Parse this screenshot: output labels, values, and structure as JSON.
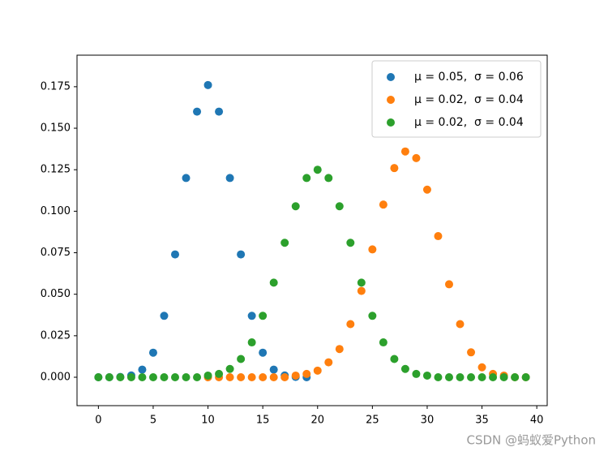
{
  "chart_data": {
    "type": "scatter",
    "xlim": [
      -1.95,
      40.95
    ],
    "ylim": [
      -0.0171,
      0.194
    ],
    "xticks": [
      0,
      5,
      10,
      15,
      20,
      25,
      30,
      35,
      40
    ],
    "yticks": [
      {
        "value": 0,
        "label": "0.000"
      },
      {
        "value": 0.025,
        "label": "0.025"
      },
      {
        "value": 0.05,
        "label": "0.050"
      },
      {
        "value": 0.075,
        "label": "0.075"
      },
      {
        "value": 0.1,
        "label": "0.100"
      },
      {
        "value": 0.125,
        "label": "0.125"
      },
      {
        "value": 0.15,
        "label": "0.150"
      },
      {
        "value": 0.175,
        "label": "0.175"
      }
    ],
    "legend": "upper right",
    "series": [
      {
        "name": "μ = 0.05,  σ = 0.06",
        "color": "#1f77b4",
        "x": [
          0,
          1,
          2,
          3,
          4,
          5,
          6,
          7,
          8,
          9,
          10,
          11,
          12,
          13,
          14,
          15,
          16,
          17,
          18,
          19
        ],
        "values": [
          0,
          0,
          0.0002,
          0.0011,
          0.0046,
          0.0148,
          0.037,
          0.074,
          0.12,
          0.16,
          0.176,
          0.16,
          0.12,
          0.074,
          0.037,
          0.0148,
          0.0046,
          0.0011,
          0.0002,
          0
        ]
      },
      {
        "name": "μ = 0.02,  σ = 0.04",
        "color": "#ff7f0e",
        "x": [
          10,
          11,
          12,
          13,
          14,
          15,
          16,
          17,
          18,
          19,
          20,
          21,
          22,
          23,
          24,
          25,
          26,
          27,
          28,
          29,
          30,
          31,
          32,
          33,
          34,
          35,
          36,
          37,
          38,
          39
        ],
        "values": [
          0,
          0,
          0,
          0,
          0,
          0,
          0,
          0,
          0.001,
          0.002,
          0.004,
          0.009,
          0.017,
          0.032,
          0.052,
          0.077,
          0.104,
          0.126,
          0.136,
          0.132,
          0.113,
          0.085,
          0.056,
          0.032,
          0.015,
          0.006,
          0.002,
          0.001,
          0,
          0
        ]
      },
      {
        "name": "μ = 0.02,  σ = 0.04",
        "color": "#2ca02c",
        "x": [
          0,
          1,
          2,
          3,
          4,
          5,
          6,
          7,
          8,
          9,
          10,
          11,
          12,
          13,
          14,
          15,
          16,
          17,
          18,
          19,
          20,
          21,
          22,
          23,
          24,
          25,
          26,
          27,
          28,
          29,
          30,
          31,
          32,
          33,
          34,
          35,
          36,
          37,
          38,
          39
        ],
        "values": [
          0,
          0,
          0,
          0,
          0,
          0,
          0,
          0,
          0,
          0,
          0.001,
          0.002,
          0.005,
          0.011,
          0.021,
          0.037,
          0.057,
          0.081,
          0.103,
          0.12,
          0.125,
          0.12,
          0.103,
          0.081,
          0.057,
          0.037,
          0.021,
          0.011,
          0.005,
          0.002,
          0.001,
          0,
          0,
          0,
          0,
          0,
          0,
          0,
          0,
          0
        ]
      }
    ]
  },
  "watermark": "CSDN @蚂蚁爱Python"
}
